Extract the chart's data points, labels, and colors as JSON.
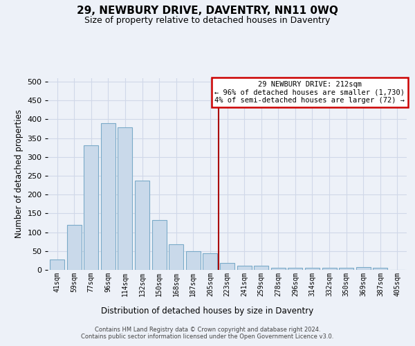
{
  "title": "29, NEWBURY DRIVE, DAVENTRY, NN11 0WQ",
  "subtitle": "Size of property relative to detached houses in Daventry",
  "xlabel": "Distribution of detached houses by size in Daventry",
  "ylabel": "Number of detached properties",
  "bar_color": "#c9d9ea",
  "bar_edge_color": "#7aaac8",
  "background_color": "#edf1f8",
  "grid_color": "#d0d8e8",
  "categories": [
    "41sqm",
    "59sqm",
    "77sqm",
    "96sqm",
    "114sqm",
    "132sqm",
    "150sqm",
    "168sqm",
    "187sqm",
    "205sqm",
    "223sqm",
    "241sqm",
    "259sqm",
    "278sqm",
    "296sqm",
    "314sqm",
    "332sqm",
    "350sqm",
    "369sqm",
    "387sqm",
    "405sqm"
  ],
  "values": [
    28,
    119,
    330,
    390,
    378,
    238,
    133,
    68,
    50,
    45,
    18,
    11,
    11,
    5,
    5,
    5,
    5,
    5,
    7,
    5,
    0
  ],
  "vline_position": 9.5,
  "vline_color": "#aa0000",
  "annotation_line1": "29 NEWBURY DRIVE: 212sqm",
  "annotation_line2": "← 96% of detached houses are smaller (1,730)",
  "annotation_line3": "4% of semi-detached houses are larger (72) →",
  "ylim_max": 510,
  "footnote1": "Contains HM Land Registry data © Crown copyright and database right 2024.",
  "footnote2": "Contains public sector information licensed under the Open Government Licence v3.0."
}
